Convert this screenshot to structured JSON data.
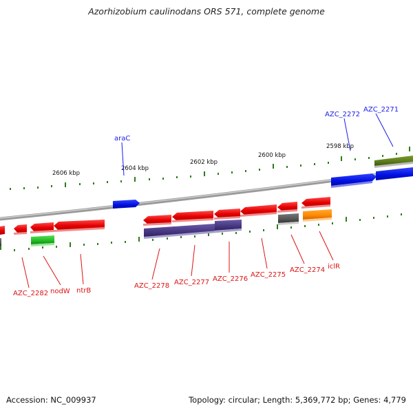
{
  "title": "Azorhizobium caulinodans ORS 571, complete genome",
  "footer": {
    "accession": "Accession: NC_009937",
    "info": "Topology: circular; Length: 5,369,772 bp; Genes: 4,779"
  },
  "scale_labels": [
    "2606 kbp",
    "2604 kbp",
    "2602 kbp",
    "2600 kbp",
    "2598 kbp"
  ],
  "labels_outer": [
    "araC",
    "AZC_2272",
    "AZC_2271"
  ],
  "labels_inner": [
    "AZC_2282",
    "nodW",
    "ntrB",
    "AZC_2278",
    "AZC_2277",
    "AZC_2276",
    "AZC_2275",
    "AZC_2274",
    "iclR"
  ],
  "colors": {
    "backbone": "#7a7a7a",
    "tick": "#2f7a1a",
    "gene_red": "#ee0000",
    "gene_blue": "#0011ee",
    "gene_purple": "#4a3a8a",
    "gene_green": "#22bb22",
    "gene_olive": "#5a7a1a",
    "gene_gray": "#555555",
    "gene_orange": "#ff8800",
    "label_blue": "#1a1aee",
    "label_red": "#dd1111"
  }
}
